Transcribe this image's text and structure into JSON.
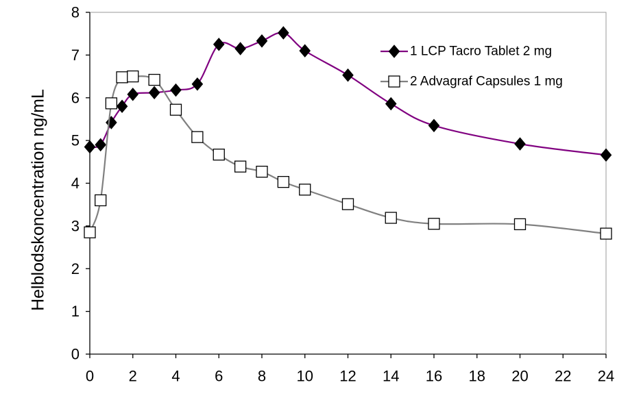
{
  "chart_data": {
    "type": "line",
    "title": "",
    "xlabel": "",
    "ylabel": "Helblodskoncentration ng/mL",
    "xlim": [
      0,
      24
    ],
    "ylim": [
      0,
      8
    ],
    "x_ticks": [
      "0",
      "2",
      "4",
      "6",
      "8",
      "10",
      "12",
      "14",
      "16",
      "18",
      "20",
      "22",
      "24"
    ],
    "y_ticks": [
      "0",
      "1",
      "2",
      "3",
      "4",
      "5",
      "6",
      "7",
      "8"
    ],
    "grid": false,
    "legend_position": "top-right",
    "series": [
      {
        "name": "1 LCP Tacro Tablet 2 mg",
        "color": "#800080",
        "marker": "filled-diamond",
        "x": [
          0,
          0.5,
          1,
          1.5,
          2,
          3,
          4,
          5,
          6,
          7,
          8,
          9,
          10,
          12,
          14,
          16,
          20,
          24
        ],
        "y": [
          4.85,
          4.9,
          5.42,
          5.8,
          6.08,
          6.12,
          6.18,
          6.32,
          7.25,
          7.15,
          7.33,
          7.52,
          7.1,
          6.53,
          5.86,
          5.35,
          4.92,
          4.66
        ]
      },
      {
        "name": "2 Advagraf Capsules 1 mg",
        "color": "#808080",
        "marker": "open-square",
        "x": [
          0,
          0.5,
          1,
          1.5,
          2,
          3,
          4,
          5,
          6,
          7,
          8,
          9,
          10,
          12,
          14,
          16,
          20,
          24
        ],
        "y": [
          2.85,
          3.6,
          5.87,
          6.48,
          6.5,
          6.42,
          5.72,
          5.08,
          4.67,
          4.39,
          4.27,
          4.03,
          3.85,
          3.51,
          3.19,
          3.05,
          3.04,
          2.82
        ]
      }
    ]
  }
}
